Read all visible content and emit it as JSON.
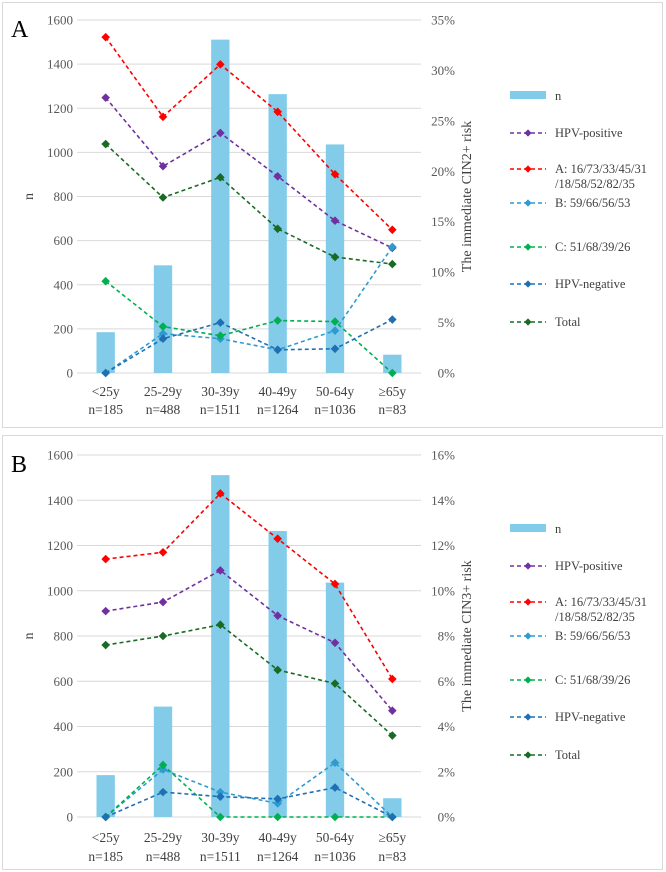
{
  "colors": {
    "bar": "#82cbe9",
    "hpv_positive": "#7030a0",
    "groupA": "#ff0000",
    "groupB": "#2e9ad0",
    "groupC": "#00b050",
    "hpv_negative": "#1f6fb5",
    "total": "#196b24",
    "grid": "#d9d9d9",
    "axis_text": "#595959"
  },
  "chart_data": [
    {
      "panel_label": "A",
      "type": "bar+line",
      "categories": [
        "<25y",
        "25-29y",
        "30-39y",
        "40-49y",
        "50-64y",
        "≥65y"
      ],
      "category_counts": [
        "n=185",
        "n=488",
        "n=1511",
        "n=1264",
        "n=1036",
        "n=83"
      ],
      "ylabel_left": "n",
      "ylabel_right": "The immediate CIN2+ risk",
      "ylim_left": [
        0,
        1600
      ],
      "yticks_left": [
        "0",
        "200",
        "400",
        "600",
        "800",
        "1000",
        "1200",
        "1400",
        "1600"
      ],
      "ylim_right": [
        0,
        0.35
      ],
      "yticks_right": [
        "0%",
        "5%",
        "10%",
        "15%",
        "20%",
        "25%",
        "30%",
        "35%"
      ],
      "bars": {
        "name": "n",
        "values": [
          185,
          488,
          1511,
          1264,
          1036,
          83
        ]
      },
      "series": [
        {
          "name": "HPV-positive",
          "legend_lines": [
            "HPV-positive"
          ],
          "color_key": "hpv_positive",
          "values": [
            0.273,
            0.205,
            0.238,
            0.195,
            0.151,
            0.124
          ]
        },
        {
          "name": "A: 16/73/33/45/31/18/58/52/82/35",
          "legend_lines": [
            "A: 16/73/33/45/31",
            "/18/58/52/82/35"
          ],
          "color_key": "groupA",
          "values": [
            0.333,
            0.254,
            0.306,
            0.259,
            0.197,
            0.142
          ]
        },
        {
          "name": "B: 59/66/56/53",
          "legend_lines": [
            "B: 59/66/56/53"
          ],
          "color_key": "groupB",
          "values": [
            0.0,
            0.039,
            0.034,
            0.023,
            0.042,
            0.125
          ]
        },
        {
          "name": "C: 51/68/39/26",
          "legend_lines": [
            "C: 51/68/39/26"
          ],
          "color_key": "groupC",
          "values": [
            0.091,
            0.046,
            0.037,
            0.052,
            0.051,
            0.0
          ]
        },
        {
          "name": "HPV-negative",
          "legend_lines": [
            "HPV-negative"
          ],
          "color_key": "hpv_negative",
          "values": [
            0.0,
            0.034,
            0.05,
            0.023,
            0.024,
            0.053
          ]
        },
        {
          "name": "Total",
          "legend_lines": [
            "Total"
          ],
          "color_key": "total",
          "values": [
            0.227,
            0.174,
            0.194,
            0.143,
            0.115,
            0.108
          ]
        }
      ]
    },
    {
      "panel_label": "B",
      "type": "bar+line",
      "categories": [
        "<25y",
        "25-29y",
        "30-39y",
        "40-49y",
        "50-64y",
        "≥65y"
      ],
      "category_counts": [
        "n=185",
        "n=488",
        "n=1511",
        "n=1264",
        "n=1036",
        "n=83"
      ],
      "ylabel_left": "n",
      "ylabel_right": "The immediate CIN3+ risk",
      "ylim_left": [
        0,
        1600
      ],
      "yticks_left": [
        "0",
        "200",
        "400",
        "600",
        "800",
        "1000",
        "1200",
        "1400",
        "1600"
      ],
      "ylim_right": [
        0,
        0.16
      ],
      "yticks_right": [
        "0%",
        "2%",
        "4%",
        "6%",
        "8%",
        "10%",
        "12%",
        "14%",
        "16%"
      ],
      "bars": {
        "name": "n",
        "values": [
          185,
          488,
          1511,
          1264,
          1036,
          83
        ]
      },
      "series": [
        {
          "name": "HPV-positive",
          "legend_lines": [
            "HPV-positive"
          ],
          "color_key": "hpv_positive",
          "values": [
            0.091,
            0.095,
            0.109,
            0.089,
            0.077,
            0.047
          ]
        },
        {
          "name": "A: 16/73/33/45/31/18/58/52/82/35",
          "legend_lines": [
            "A: 16/73/33/45/31",
            "/18/58/52/82/35"
          ],
          "color_key": "groupA",
          "values": [
            0.114,
            0.117,
            0.143,
            0.123,
            0.103,
            0.061
          ]
        },
        {
          "name": "B: 59/66/56/53",
          "legend_lines": [
            "B: 59/66/56/53"
          ],
          "color_key": "groupB",
          "values": [
            0.0,
            0.021,
            0.011,
            0.006,
            0.024,
            0.0
          ]
        },
        {
          "name": "C: 51/68/39/26",
          "legend_lines": [
            "C: 51/68/39/26"
          ],
          "color_key": "groupC",
          "values": [
            0.0,
            0.023,
            0.0,
            0.0,
            0.0,
            0.0
          ]
        },
        {
          "name": "HPV-negative",
          "legend_lines": [
            "HPV-negative"
          ],
          "color_key": "hpv_negative",
          "values": [
            0.0,
            0.011,
            0.009,
            0.008,
            0.013,
            0.0
          ]
        },
        {
          "name": "Total",
          "legend_lines": [
            "Total"
          ],
          "color_key": "total",
          "values": [
            0.076,
            0.08,
            0.085,
            0.065,
            0.059,
            0.036
          ]
        }
      ]
    }
  ]
}
